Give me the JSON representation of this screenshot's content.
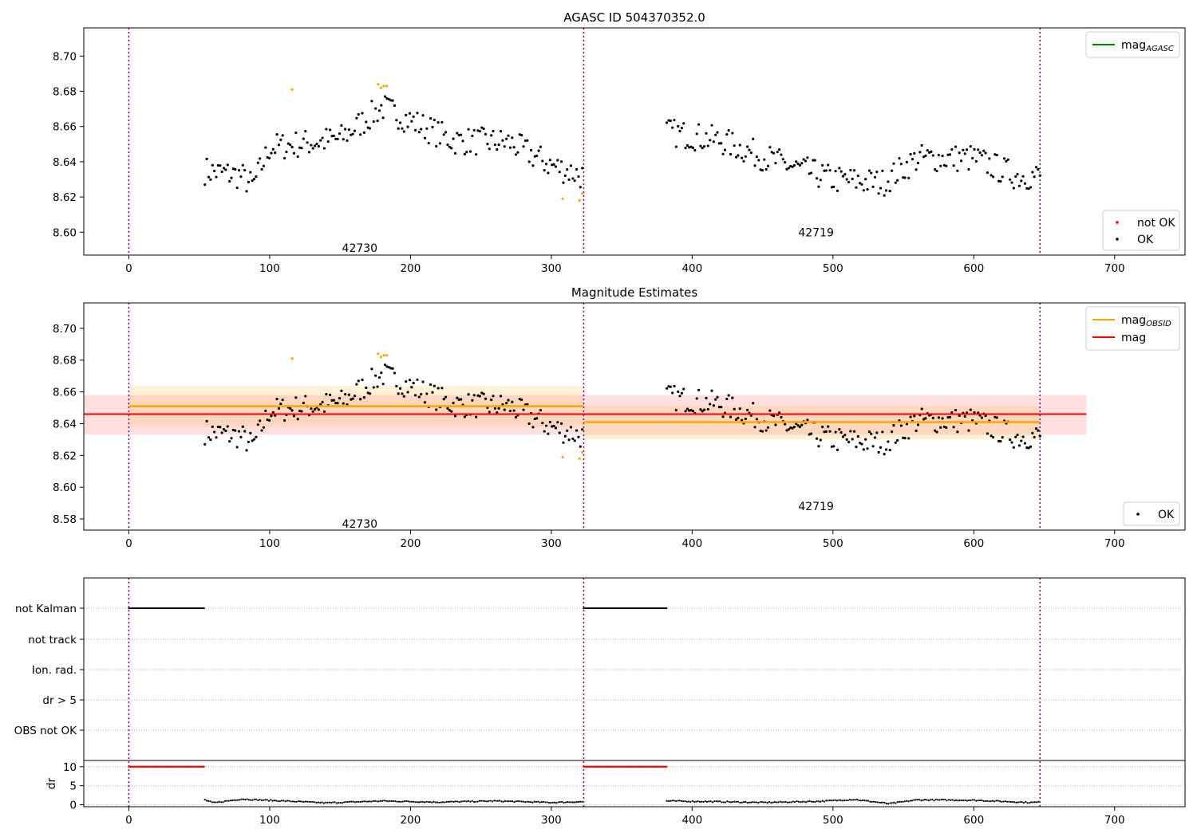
{
  "colors": {
    "ok": "#000000",
    "not_ok": "#ffa500",
    "not_ok_marker": "#ff0000",
    "obsid_line": "#ffa500",
    "agasc_line": "#008000",
    "mag_line": "#ff0000",
    "obsid_separator": "#800080",
    "grid": "#b0b0b0"
  },
  "chart_data": [
    {
      "type": "scatter",
      "title": "AGASC ID 504370352.0",
      "xlim": [
        -32,
        750
      ],
      "ylim": [
        8.587,
        8.716
      ],
      "xticks": [
        "0",
        "100",
        "200",
        "300",
        "400",
        "500",
        "600",
        "700"
      ],
      "xtick_values": [
        0,
        100,
        200,
        300,
        400,
        500,
        600,
        700
      ],
      "yticks": [
        "8.60",
        "8.62",
        "8.64",
        "8.66",
        "8.68",
        "8.70"
      ],
      "ytick_values": [
        8.6,
        8.62,
        8.64,
        8.66,
        8.68,
        8.7
      ],
      "obsid_boundaries": [
        0,
        323,
        647
      ],
      "obsid_labels": [
        {
          "text": "42730",
          "x": 160,
          "y": 8.591
        },
        {
          "text": "42719",
          "x": 484,
          "y": 8.6
        }
      ],
      "legend_lines": [
        {
          "label_main": "mag",
          "label_sub": "AGASC",
          "color_key": "agasc_line"
        }
      ],
      "legend_points": [
        {
          "label": "not OK",
          "color_key": "not_ok_marker"
        },
        {
          "label": "OK",
          "color_key": "ok"
        }
      ],
      "series": [
        {
          "name": "OK",
          "color_key": "ok",
          "segments": [
            {
              "x_start": 54,
              "x_end": 322,
              "points": 200,
              "trend": [
                [
                  54,
                  8.635
                ],
                [
                  80,
                  8.632
                ],
                [
                  88,
                  8.626
                ],
                [
                  100,
                  8.648
                ],
                [
                  150,
                  8.653
                ],
                [
                  180,
                  8.671
                ],
                [
                  230,
                  8.652
                ],
                [
                  270,
                  8.651
                ],
                [
                  300,
                  8.638
                ],
                [
                  322,
                  8.632
                ]
              ]
            },
            {
              "x_start": 382,
              "x_end": 647,
              "points": 200,
              "trend": [
                [
                  382,
                  8.657
                ],
                [
                  420,
                  8.652
                ],
                [
                  460,
                  8.64
                ],
                [
                  500,
                  8.63
                ],
                [
                  535,
                  8.628
                ],
                [
                  560,
                  8.642
                ],
                [
                  600,
                  8.642
                ],
                [
                  630,
                  8.632
                ],
                [
                  647,
                  8.632
                ]
              ]
            }
          ]
        },
        {
          "name": "not OK",
          "color_key": "not_ok",
          "points": [
            [
              116,
              8.681
            ],
            [
              177,
              8.684
            ],
            [
              179,
              8.682
            ],
            [
              181,
              8.683
            ],
            [
              183,
              8.683
            ],
            [
              308,
              8.619
            ],
            [
              320,
              8.618
            ],
            [
              322,
              8.622
            ]
          ]
        }
      ]
    },
    {
      "type": "scatter",
      "title": "Magnitude Estimates",
      "xlim": [
        -32,
        750
      ],
      "ylim": [
        8.573,
        8.716
      ],
      "xticks": [
        "0",
        "100",
        "200",
        "300",
        "400",
        "500",
        "600",
        "700"
      ],
      "xtick_values": [
        0,
        100,
        200,
        300,
        400,
        500,
        600,
        700
      ],
      "yticks": [
        "8.58",
        "8.60",
        "8.62",
        "8.64",
        "8.66",
        "8.68",
        "8.70"
      ],
      "ytick_values": [
        8.58,
        8.6,
        8.62,
        8.64,
        8.66,
        8.68,
        8.7
      ],
      "obsid_boundaries": [
        0,
        323,
        647
      ],
      "obsid_labels": [
        {
          "text": "42730",
          "x": 160,
          "y": 8.577
        },
        {
          "text": "42719",
          "x": 484,
          "y": 8.588
        }
      ],
      "mag": {
        "value": 8.646,
        "band": [
          8.633,
          8.658
        ],
        "x_range": [
          -32,
          680
        ]
      },
      "mag_obsid": [
        {
          "x_range": [
            0,
            323
          ],
          "value": 8.651,
          "band_inner": [
            8.638,
            8.664
          ],
          "band_outer": [
            8.638,
            8.664
          ]
        },
        {
          "x_range": [
            323,
            647
          ],
          "value": 8.641,
          "band_inner": [
            8.63,
            8.651
          ],
          "band_outer": [
            8.63,
            8.651
          ]
        }
      ],
      "legend_lines": [
        {
          "label_main": "mag",
          "label_sub": "OBSID",
          "color_key": "obsid_line"
        },
        {
          "label_main": "mag",
          "label_sub": "",
          "color_key": "mag_line"
        }
      ],
      "legend_points": [
        {
          "label": "OK",
          "color_key": "ok"
        }
      ]
    },
    {
      "type": "scatter",
      "title": "",
      "xlim": [
        -32,
        750
      ],
      "flag_rows": [
        "not Kalman",
        "not track",
        "Ion. rad.",
        "dr > 5",
        "OBS not OK"
      ],
      "flag_segments": [
        {
          "row": "not Kalman",
          "x_ranges": [
            [
              0,
              54
            ],
            [
              323,
              382
            ]
          ]
        }
      ],
      "dr": {
        "ylabel": "dr",
        "yticks": [
          "0",
          "5",
          "10"
        ],
        "ytick_values": [
          0,
          5,
          10
        ],
        "ylim": [
          -0.5,
          11
        ],
        "clipped_value": 10,
        "clipped_ranges": [
          [
            0,
            54
          ],
          [
            323,
            382
          ]
        ],
        "trend": [
          [
            54,
            1.3
          ],
          [
            60,
            0.5
          ],
          [
            80,
            1.5
          ],
          [
            110,
            1.0
          ],
          [
            140,
            0.5
          ],
          [
            180,
            1.0
          ],
          [
            220,
            0.7
          ],
          [
            260,
            1.0
          ],
          [
            300,
            0.6
          ],
          [
            322,
            0.8
          ],
          [
            382,
            1.0
          ],
          [
            420,
            0.8
          ],
          [
            450,
            0.6
          ],
          [
            490,
            0.9
          ],
          [
            515,
            1.4
          ],
          [
            540,
            0.3
          ],
          [
            560,
            1.3
          ],
          [
            600,
            1.2
          ],
          [
            640,
            0.6
          ],
          [
            647,
            0.7
          ]
        ]
      },
      "xticks": [
        "0",
        "100",
        "200",
        "300",
        "400",
        "500",
        "600",
        "700"
      ],
      "xtick_values": [
        0,
        100,
        200,
        300,
        400,
        500,
        600,
        700
      ]
    }
  ]
}
